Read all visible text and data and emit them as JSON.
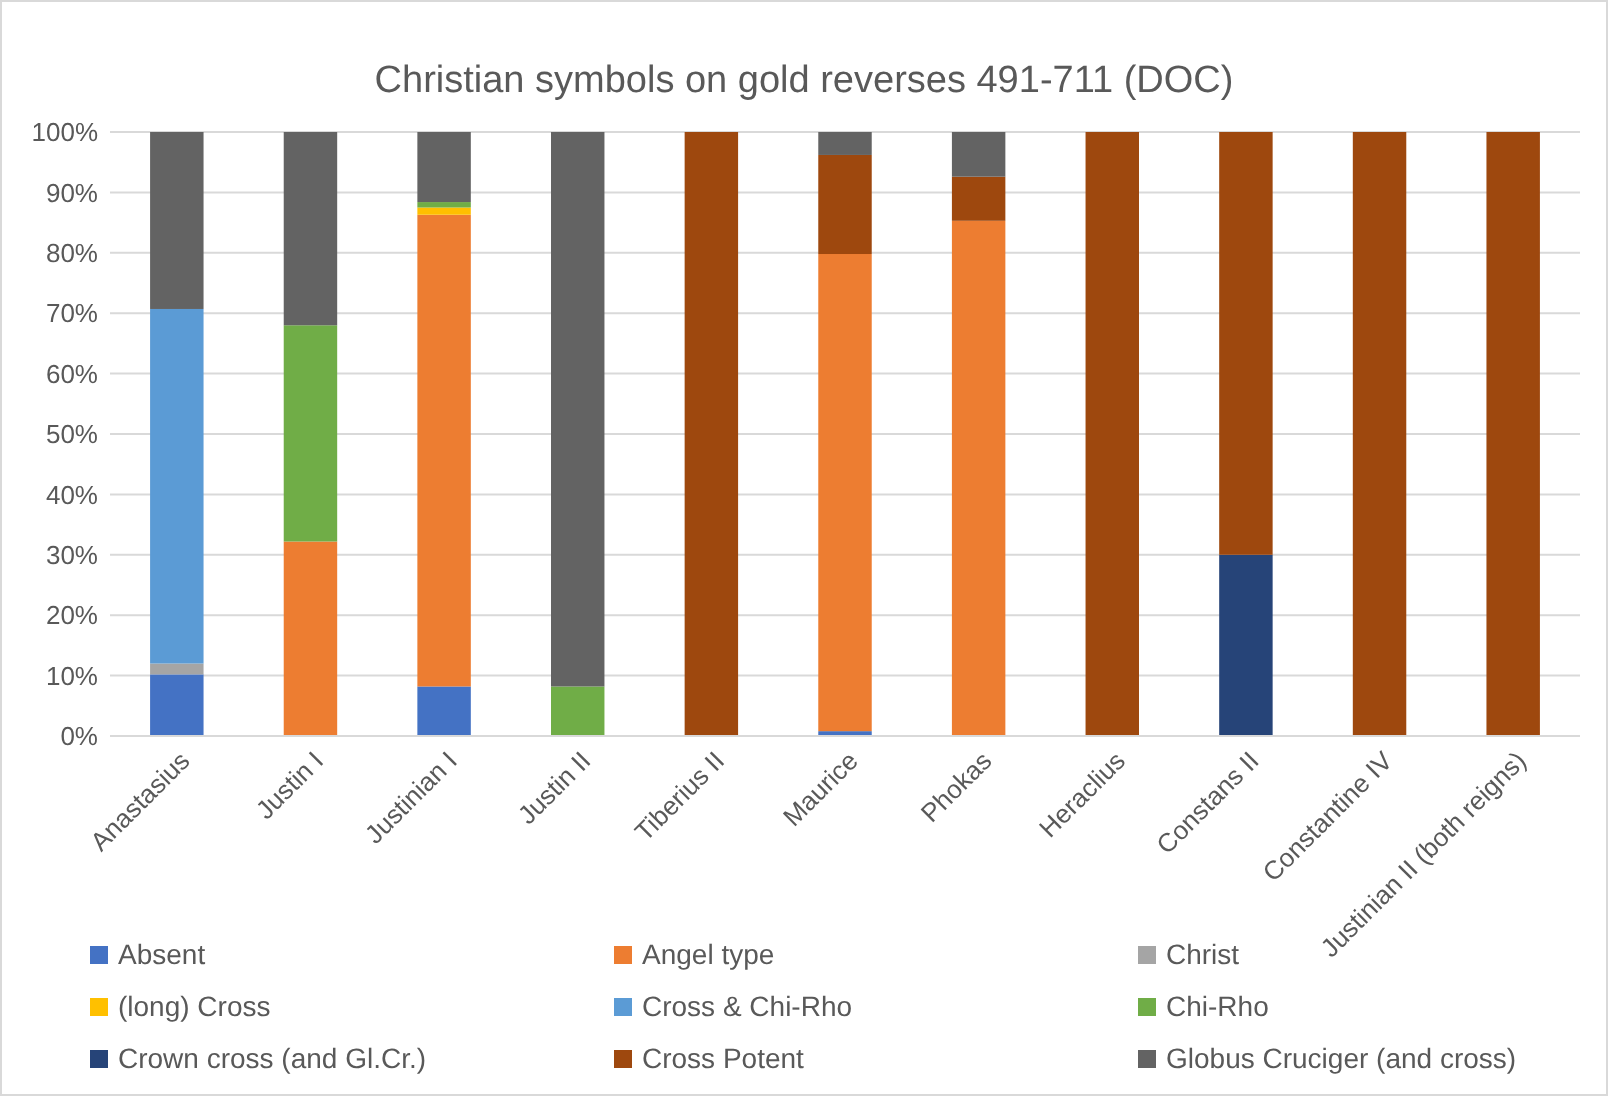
{
  "chart_data": {
    "type": "bar",
    "stacked": true,
    "title": "Christian symbols on gold reverses 491-711 (DOC)",
    "categories": [
      "Anastasius",
      "Justin I",
      "Justinian I",
      "Justin II",
      "Tiberius II",
      "Maurice",
      "Phokas",
      "Heraclius",
      "Constans II",
      "Constantine IV",
      "Justinian II (both reigns)"
    ],
    "ylim": [
      0,
      100
    ],
    "yticks": [
      {
        "value": 0,
        "label": "0%"
      },
      {
        "value": 10,
        "label": "10%"
      },
      {
        "value": 20,
        "label": "20%"
      },
      {
        "value": 30,
        "label": "30%"
      },
      {
        "value": 40,
        "label": "40%"
      },
      {
        "value": 50,
        "label": "50%"
      },
      {
        "value": 60,
        "label": "60%"
      },
      {
        "value": 70,
        "label": "70%"
      },
      {
        "value": 80,
        "label": "80%"
      },
      {
        "value": 90,
        "label": "90%"
      },
      {
        "value": 100,
        "label": "100%"
      }
    ],
    "grid": "y",
    "legend": "bottom",
    "series": [
      {
        "name": "Absent",
        "color": "#4472c4",
        "values": [
          10.2,
          0,
          8.2,
          0,
          0,
          0.8,
          0,
          0,
          0,
          0,
          0
        ]
      },
      {
        "name": "Angel type",
        "color": "#ed7d31",
        "values": [
          0,
          32.2,
          78.1,
          0,
          0,
          79,
          85.3,
          0,
          0,
          0,
          0
        ]
      },
      {
        "name": "Christ",
        "color": "#a5a5a5",
        "values": [
          1.8,
          0,
          0,
          0,
          0,
          0,
          0,
          0,
          0,
          0,
          0
        ]
      },
      {
        "name": "(long) Cross",
        "color": "#ffc000",
        "values": [
          0,
          0,
          1.2,
          0,
          0,
          0,
          0,
          0,
          0,
          0,
          0
        ]
      },
      {
        "name": "Cross & Chi-Rho",
        "color": "#5b9bd5",
        "values": [
          58.7,
          0,
          0,
          0,
          0,
          0,
          0,
          0,
          0,
          0,
          0
        ]
      },
      {
        "name": "Chi-Rho",
        "color": "#70ad47",
        "values": [
          0,
          35.8,
          0.9,
          8.2,
          0,
          0,
          0,
          0,
          0,
          0,
          0
        ]
      },
      {
        "name": "Crown cross (and Gl.Cr.)",
        "color": "#264478",
        "values": [
          0,
          0,
          0,
          0,
          0,
          0,
          0,
          0,
          30,
          0,
          0
        ]
      },
      {
        "name": "Cross Potent",
        "color": "#9e480e",
        "values": [
          0,
          0,
          0,
          0,
          100,
          16.4,
          7.3,
          100,
          70,
          100,
          100
        ]
      },
      {
        "name": "Globus Cruciger (and cross)",
        "color": "#636363",
        "values": [
          29.3,
          32,
          11.6,
          91.8,
          0,
          3.8,
          7.4,
          0,
          0,
          0,
          0
        ]
      }
    ]
  }
}
